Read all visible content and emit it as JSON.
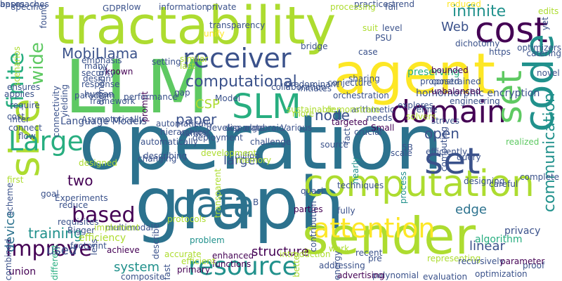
{
  "colors": {
    "background": "#ffffff",
    "palette": [
      "#440154",
      "#3b528b",
      "#2c728e",
      "#21918c",
      "#28ae80",
      "#5ec962",
      "#addc30",
      "#fde725"
    ]
  },
  "words": [
    {
      "text": "operation",
      "color": "#2c728e"
    },
    {
      "text": "LLM",
      "color": "#5ec962"
    },
    {
      "text": "agent",
      "color": "#fde725"
    },
    {
      "text": "tractability",
      "color": "#addc30"
    },
    {
      "text": "graph",
      "color": "#2c728e"
    },
    {
      "text": "sender",
      "color": "#addc30"
    },
    {
      "text": "computation",
      "color": "#addc30"
    },
    {
      "text": "cost",
      "color": "#440154"
    },
    {
      "text": "code",
      "color": "#21918c"
    },
    {
      "text": "size",
      "color": "#addc30"
    },
    {
      "text": "domain",
      "color": "#440154"
    },
    {
      "text": "receiver",
      "color": "#3b528b"
    },
    {
      "text": "SLM",
      "color": "#28ae80"
    },
    {
      "text": "data",
      "color": "#2c728e"
    },
    {
      "text": "set",
      "color": "#3b528b"
    },
    {
      "text": "set",
      "color": "#5ec962"
    },
    {
      "text": "attention",
      "color": "#fde725"
    },
    {
      "text": "resource",
      "color": "#21918c"
    },
    {
      "text": "improve",
      "color": "#440154"
    },
    {
      "text": "based",
      "color": "#440154"
    },
    {
      "text": "Large",
      "color": "#28ae80"
    },
    {
      "text": "finite",
      "color": "#28ae80"
    },
    {
      "text": "wide",
      "color": "#5ec962"
    },
    {
      "text": "computational",
      "color": "#3b528b"
    },
    {
      "text": "MobiLlama",
      "color": "#3b528b"
    },
    {
      "text": "infinite",
      "color": "#21918c"
    },
    {
      "text": "communication",
      "color": "#21918c"
    },
    {
      "text": "node",
      "color": "#3b528b"
    },
    {
      "text": "paper",
      "color": "#3b528b"
    },
    {
      "text": "open",
      "color": "#3b528b"
    },
    {
      "text": "CSP",
      "color": "#addc30"
    },
    {
      "text": "Web",
      "color": "#3b528b"
    },
    {
      "text": "structure",
      "color": "#440154"
    },
    {
      "text": "larger",
      "color": "#3b528b"
    },
    {
      "text": "training",
      "color": "#21918c"
    },
    {
      "text": "device",
      "color": "#2c728e"
    },
    {
      "text": "system",
      "color": "#21918c"
    },
    {
      "text": "linear",
      "color": "#3b528b"
    },
    {
      "text": "edge",
      "color": "#2c728e"
    },
    {
      "text": "two",
      "color": "#440154"
    },
    {
      "text": "used",
      "color": "#3b528b"
    },
    {
      "text": "Language Models",
      "color": "#3b528b"
    },
    {
      "text": "homomorphic encryption",
      "color": "#3b528b"
    },
    {
      "text": "preserving",
      "color": "#28ae80"
    },
    {
      "text": "algorithm",
      "color": "#28ae80"
    },
    {
      "text": "privacy",
      "color": "#3b528b"
    },
    {
      "text": "union",
      "color": "#440154"
    },
    {
      "text": "efficiency",
      "color": "#addc30"
    },
    {
      "text": "complete",
      "color": "#3b528b"
    },
    {
      "text": "realized",
      "color": "#5ec962"
    },
    {
      "text": "proof",
      "color": "#3b528b"
    },
    {
      "text": "optimization",
      "color": "#3b528b"
    },
    {
      "text": "evaluation",
      "color": "#3b528b"
    },
    {
      "text": "polynomial",
      "color": "#3b528b"
    },
    {
      "text": "advertising",
      "color": "#440154"
    },
    {
      "text": "scale",
      "color": "#3b528b"
    },
    {
      "text": "source",
      "color": "#3b528b"
    },
    {
      "text": "fact",
      "color": "#3b528b"
    },
    {
      "text": "nearly",
      "color": "#21918c"
    },
    {
      "text": "process",
      "color": "#21918c"
    },
    {
      "text": "techniques",
      "color": "#3b528b"
    },
    {
      "text": "parties",
      "color": "#440154"
    },
    {
      "text": "contribution",
      "color": "#3b528b"
    },
    {
      "text": "fully",
      "color": "#3b528b"
    },
    {
      "text": "quasi",
      "color": "#3b528b"
    },
    {
      "text": "problem",
      "color": "#21918c"
    },
    {
      "text": "protocols",
      "color": "#addc30"
    },
    {
      "text": "achieve",
      "color": "#440154"
    },
    {
      "text": "accurate",
      "color": "#addc30"
    },
    {
      "text": "enhanced",
      "color": "#440154"
    },
    {
      "text": "functions",
      "color": "#440154"
    },
    {
      "text": "work",
      "color": "#addc30"
    },
    {
      "text": "energy",
      "color": "#3b528b"
    },
    {
      "text": "composite",
      "color": "#3b528b"
    },
    {
      "text": "fast",
      "color": "#3b528b"
    },
    {
      "text": "different",
      "color": "#28ae80"
    },
    {
      "text": "primary",
      "color": "#440154"
    },
    {
      "text": "efficient",
      "color": "#addc30"
    },
    {
      "text": "first",
      "color": "#addc30"
    },
    {
      "text": "goal",
      "color": "#3b528b"
    },
    {
      "text": "B",
      "color": "#3b528b"
    },
    {
      "text": "Small",
      "color": "#440154"
    },
    {
      "text": "targeted",
      "color": "#440154"
    },
    {
      "text": "arithmetic",
      "color": "#3b528b"
    },
    {
      "text": "algebraic",
      "color": "#3b528b"
    },
    {
      "text": "Various",
      "color": "#3b528b"
    },
    {
      "text": "deployment",
      "color": "#3b528b"
    },
    {
      "text": "conjecture",
      "color": "#3b528b"
    },
    {
      "text": "constrained",
      "color": "#3b528b"
    },
    {
      "text": "unbalanced",
      "color": "#440154"
    },
    {
      "text": "bounded",
      "color": "#440154"
    },
    {
      "text": "known",
      "color": "#440154"
    },
    {
      "text": "prompt",
      "color": "#440154"
    },
    {
      "text": "setting",
      "color": "#3b528b"
    },
    {
      "text": "last",
      "color": "#addc30"
    },
    {
      "text": "similar",
      "color": "#addc30"
    },
    {
      "text": "information",
      "color": "#3b528b"
    },
    {
      "text": "private",
      "color": "#3b528b"
    },
    {
      "text": "practices",
      "color": "#3b528b"
    },
    {
      "text": "dichotomy",
      "color": "#3b528b"
    },
    {
      "text": "https",
      "color": "#3b528b"
    },
    {
      "text": "PSU",
      "color": "#3b528b"
    },
    {
      "text": "GDPR",
      "color": "#3b528b"
    },
    {
      "text": "low",
      "color": "#3b528b"
    },
    {
      "text": "processing",
      "color": "#addc30"
    },
    {
      "text": "full",
      "color": "#3b528b"
    },
    {
      "text": "trend",
      "color": "#3b528b"
    },
    {
      "text": "reduced",
      "color": "#fde725"
    },
    {
      "text": "edits",
      "color": "#addc30"
    },
    {
      "text": "yet",
      "color": "#3b528b"
    },
    {
      "text": "specific",
      "color": "#3b528b"
    },
    {
      "text": "found",
      "color": "#3b528b"
    },
    {
      "text": "transparency",
      "color": "#3b528b"
    },
    {
      "text": "unify",
      "color": "#fde725"
    },
    {
      "text": "suit",
      "color": "#addc30"
    },
    {
      "text": "level",
      "color": "#3b528b"
    },
    {
      "text": "bridge",
      "color": "#3b528b"
    },
    {
      "text": "case",
      "color": "#3b528b"
    },
    {
      "text": "optimizers",
      "color": "#3b528b"
    },
    {
      "text": "catering",
      "color": "#3b528b"
    },
    {
      "text": "novel",
      "color": "#3b528b"
    },
    {
      "text": "many",
      "color": "#3b528b"
    },
    {
      "text": "security",
      "color": "#3b528b"
    },
    {
      "text": "design",
      "color": "#3b528b"
    },
    {
      "text": "response",
      "color": "#3b528b"
    },
    {
      "text": "demands",
      "color": "#3b528b"
    },
    {
      "text": "emphasis",
      "color": "#3b528b"
    },
    {
      "text": "scenarios",
      "color": "#addc30"
    },
    {
      "text": "connectivity",
      "color": "#3b528b"
    },
    {
      "text": "Asymptotically",
      "color": "#3b528b"
    },
    {
      "text": "human",
      "color": "#3b528b"
    },
    {
      "text": "framework",
      "color": "#3b528b"
    },
    {
      "text": "paradigm",
      "color": "#3b528b"
    },
    {
      "text": "yielding",
      "color": "#3b528b"
    },
    {
      "text": "performance",
      "color": "#3b528b"
    },
    {
      "text": "gap",
      "color": "#3b528b"
    },
    {
      "text": "Model",
      "color": "#3b528b"
    },
    {
      "text": "collaboration",
      "color": "#3b528b"
    },
    {
      "text": "initiates",
      "color": "#3b528b"
    },
    {
      "text": "refine",
      "color": "#3b528b"
    },
    {
      "text": "explores",
      "color": "#3b528b"
    },
    {
      "text": "engineering",
      "color": "#3b528b"
    },
    {
      "text": "sharing",
      "color": "#3b528b"
    },
    {
      "text": "predominant",
      "color": "#3b528b"
    },
    {
      "text": "proposed",
      "color": "#3b528b"
    },
    {
      "text": "more",
      "color": "#addc30"
    },
    {
      "text": "orchestration",
      "color": "#3b528b"
    },
    {
      "text": "needs",
      "color": "#3b528b"
    },
    {
      "text": "solvers",
      "color": "#addc30"
    },
    {
      "text": "strives",
      "color": "#3b528b"
    },
    {
      "text": "demonstrate",
      "color": "#addc30"
    },
    {
      "text": "sustainable",
      "color": "#addc30"
    },
    {
      "text": "automatically",
      "color": "#3b528b"
    },
    {
      "text": "develop",
      "color": "#3b528b"
    },
    {
      "text": "named",
      "color": "#3b528b"
    },
    {
      "text": "hierarchies",
      "color": "#3b528b"
    },
    {
      "text": "disparate",
      "color": "#3b528b"
    },
    {
      "text": "challenge",
      "color": "#3b528b"
    },
    {
      "text": "billion",
      "color": "#3b528b"
    },
    {
      "text": "memory",
      "color": "#addc30"
    },
    {
      "text": "crucial",
      "color": "#3b528b"
    },
    {
      "text": "5B",
      "color": "#3b528b"
    },
    {
      "text": "efficiently",
      "color": "#3b528b"
    },
    {
      "text": "computing",
      "color": "#3b528b"
    },
    {
      "text": "designing",
      "color": "#3b528b"
    },
    {
      "text": "query",
      "color": "#3b528b"
    },
    {
      "text": "automatically",
      "color": "#3b528b"
    },
    {
      "text": "changing",
      "color": "#3b528b"
    },
    {
      "text": "designed",
      "color": "#addc30"
    },
    {
      "text": "Experiments",
      "color": "#3b528b"
    },
    {
      "text": "reduce",
      "color": "#3b528b"
    },
    {
      "text": "scheme",
      "color": "#3b528b"
    },
    {
      "text": "requisites",
      "color": "#3b528b"
    },
    {
      "text": "Bigger",
      "color": "#3b528b"
    },
    {
      "text": "footprint",
      "color": "#3b528b"
    },
    {
      "text": "combined",
      "color": "#3b528b"
    },
    {
      "text": "multimodal",
      "color": "#3b528b"
    },
    {
      "text": "implement",
      "color": "#addc30"
    },
    {
      "text": "less",
      "color": "#3b528b"
    },
    {
      "text": "describe",
      "color": "#3b528b"
    },
    {
      "text": "describing",
      "color": "#3b528b"
    },
    {
      "text": "development",
      "color": "#addc30"
    },
    {
      "text": "transparent",
      "color": "#addc30"
    },
    {
      "text": "better",
      "color": "#addc30"
    },
    {
      "text": "introduction",
      "color": "#addc30"
    },
    {
      "text": "addressing",
      "color": "#3b528b"
    },
    {
      "text": "recent",
      "color": "#3b528b"
    },
    {
      "text": "pre",
      "color": "#3b528b"
    },
    {
      "text": "representing",
      "color": "#addc30"
    },
    {
      "text": "recursively",
      "color": "#3b528b"
    },
    {
      "text": "parameter",
      "color": "#440154"
    },
    {
      "text": "careful",
      "color": "#3b528b"
    },
    {
      "text": "require",
      "color": "#3b528b"
    },
    {
      "text": "cost",
      "color": "#3b528b"
    },
    {
      "text": "inter",
      "color": "#3b528b"
    },
    {
      "text": "connect",
      "color": "#3b528b"
    },
    {
      "text": "flow",
      "color": "#3b528b"
    },
    {
      "text": "applies",
      "color": "#3b528b"
    },
    {
      "text": "ensures",
      "color": "#3b528b"
    },
    {
      "text": "approaches",
      "color": "#3b528b"
    },
    {
      "text": "bases",
      "color": "#3b528b"
    }
  ]
}
